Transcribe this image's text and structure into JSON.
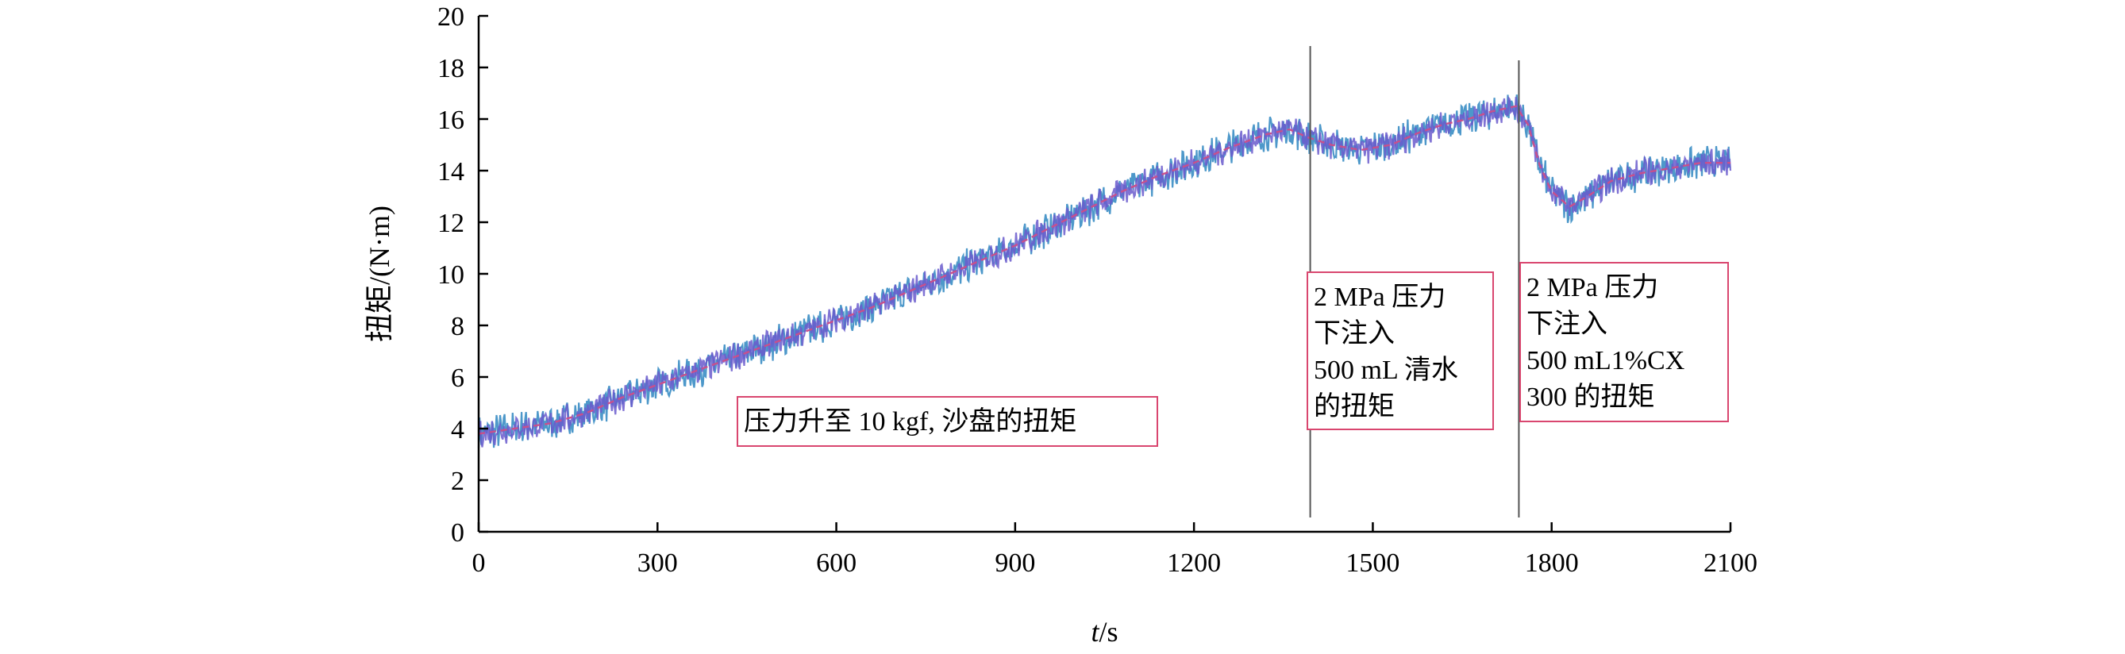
{
  "chart_data": {
    "type": "line",
    "xlabel_italic": "t",
    "xlabel_rest": "/s",
    "ylabel": "扭矩/(N·m)",
    "xlim": [
      0,
      2100
    ],
    "ylim": [
      0,
      20
    ],
    "x_ticks": [
      "0",
      "300",
      "600",
      "900",
      "1200",
      "1500",
      "1800",
      "2100"
    ],
    "y_ticks": [
      "0",
      "2",
      "4",
      "6",
      "8",
      "10",
      "12",
      "14",
      "16",
      "18",
      "20"
    ],
    "grid": false,
    "legend": "none",
    "colors": {
      "raw_series": "#2e86c1",
      "raw_series_alt": "#6a5acd",
      "smooth_series": "#c8508c",
      "annotation_border": "#d9466f",
      "marker_line": "#555555"
    },
    "series": [
      {
        "x": [
          0,
          60,
          120,
          180,
          240,
          300,
          360,
          420,
          480,
          540,
          600,
          660,
          720,
          780,
          840,
          900,
          960,
          1020,
          1080,
          1140,
          1200,
          1260,
          1320,
          1360,
          1390,
          1430,
          1480,
          1530,
          1580,
          1620,
          1660,
          1700,
          1740,
          1760,
          1780,
          1800,
          1830,
          1860,
          1900,
          1950,
          2000,
          2050,
          2100
        ],
        "y": [
          3.8,
          4.0,
          4.2,
          4.6,
          5.2,
          5.7,
          6.2,
          6.7,
          7.2,
          7.7,
          8.2,
          8.7,
          9.3,
          9.9,
          10.5,
          11.1,
          11.8,
          12.5,
          13.2,
          13.8,
          14.3,
          14.9,
          15.4,
          15.6,
          15.3,
          15.0,
          14.8,
          15.0,
          15.5,
          15.8,
          16.0,
          16.3,
          16.5,
          15.8,
          14.2,
          13.2,
          12.6,
          13.0,
          13.6,
          13.9,
          14.1,
          14.3,
          14.3
        ]
      }
    ],
    "vlines": [
      1395,
      1745
    ],
    "annotations": [
      {
        "lines": [
          "压力升至 10 kgf, 沙盘的扭矩"
        ]
      },
      {
        "lines": [
          "2 MPa 压力",
          "下注入",
          "500 mL 清水",
          "的扭矩"
        ]
      },
      {
        "lines": [
          "2 MPa 压力",
          "下注入",
          "500 mL1%CX",
          "300 的扭矩"
        ]
      }
    ]
  }
}
